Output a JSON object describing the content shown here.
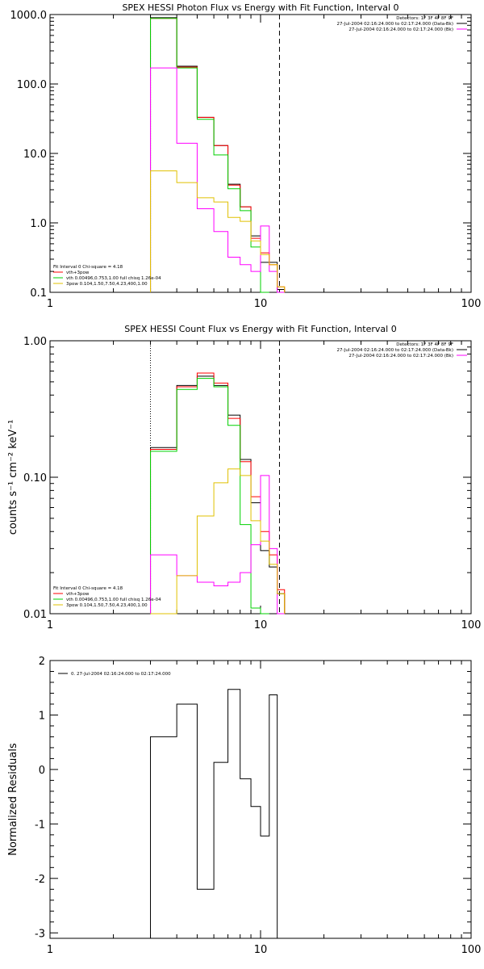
{
  "chart_data": [
    {
      "type": "line",
      "title": "SPEX HESSI Photon Flux vs Energy with Fit Function, Interval 0",
      "xlim": [
        1,
        100
      ],
      "ylim": [
        0.1,
        1000
      ],
      "xscale": "log",
      "yscale": "log",
      "xticks": [
        "1",
        "10",
        "100"
      ],
      "yticks": [
        "1000.0",
        "100.0",
        "10.0",
        "1.0",
        "0.1"
      ],
      "legend_top": [
        "Detectors: 1F 3F 4F 8F 9F",
        "27-Jul-2004 02:16:24.000 to 02:17:24.000 (Data-Bk)",
        "27-Jul-2004 02:16:24.000 to 02:17:24.000 (Bk)"
      ],
      "legend_bottom": [
        "Fit Interval 0   Chi-square = 4.18",
        "vth+3pow",
        "vth 0.00496,0.753,1.00  full chisq 1.26e-04",
        "3pow 0.104,1.50,7.50,4.23,400,1.00"
      ],
      "vlines": [
        3,
        12.3
      ],
      "edges": [
        3,
        4,
        5,
        6,
        7,
        8,
        9,
        10,
        11,
        12,
        13
      ],
      "series": [
        {
          "color": "#000000",
          "values": [
            900,
            180,
            33,
            13,
            3.6,
            1.7,
            0.65,
            0.27,
            0.27,
            0.11
          ]
        },
        {
          "color": "#ff0000",
          "values": [
            880,
            175,
            33,
            13,
            3.5,
            1.7,
            0.6,
            0.37,
            0.25,
            0.12
          ]
        },
        {
          "color": "#00d000",
          "values": [
            880,
            170,
            31,
            9.5,
            3.1,
            1.5,
            0.45,
            0.05
          ]
        },
        {
          "color": "#ff00ff",
          "values": [
            170,
            14,
            1.6,
            0.75,
            0.32,
            0.25,
            0.2,
            0.9,
            0.2,
            0.05
          ]
        },
        {
          "color": "#e0c000",
          "values": [
            5.6,
            3.8,
            2.3,
            2.0,
            1.2,
            1.05,
            0.55,
            0.35,
            0.25,
            0.12
          ]
        }
      ]
    },
    {
      "type": "line",
      "title": "SPEX HESSI Count Flux vs Energy with Fit Function, Interval 0",
      "xlim": [
        1,
        100
      ],
      "ylim": [
        0.01,
        1
      ],
      "xscale": "log",
      "yscale": "log",
      "xticks": [
        "1",
        "10",
        "100"
      ],
      "yticks": [
        "1.00",
        "0.10",
        "0.01"
      ],
      "ylabel": "counts s⁻¹ cm⁻² keV⁻¹",
      "legend_top": [
        "Detectors: 1F 3F 4F 8F 9F",
        "27-Jul-2004 02:16:24.000 to 02:17:24.000 (Data-Bk)",
        "27-Jul-2004 02:16:24.000 to 02:17:24.000 (Bk)"
      ],
      "legend_bottom": [
        "Fit Interval 0   Chi-square = 4.18",
        "vth+3pow",
        "vth 0.00496,0.753,1.00  full chisq 1.26e-04",
        "3pow 0.104,1.50,7.50,4.23,400,1.00"
      ],
      "vlines": [
        3,
        12.3
      ],
      "edges": [
        3,
        4,
        5,
        6,
        7,
        8,
        9,
        10,
        11,
        12,
        13
      ],
      "series": [
        {
          "color": "#000000",
          "values": [
            0.165,
            0.47,
            0.55,
            0.47,
            0.285,
            0.135,
            0.065,
            0.029,
            0.022,
            0.014
          ]
        },
        {
          "color": "#ff0000",
          "values": [
            0.16,
            0.46,
            0.58,
            0.49,
            0.27,
            0.13,
            0.072,
            0.04,
            0.027,
            0.015
          ]
        },
        {
          "color": "#00d000",
          "values": [
            0.155,
            0.44,
            0.53,
            0.46,
            0.24,
            0.045,
            0.011,
            0.006
          ]
        },
        {
          "color": "#ff00ff",
          "values": [
            0.027,
            0.019,
            0.017,
            0.016,
            0.017,
            0.02,
            0.032,
            0.103,
            0.03,
            0.005
          ]
        },
        {
          "color": "#e0c000",
          "values": [
            0.004,
            0.019,
            0.052,
            0.091,
            0.115,
            0.103,
            0.048,
            0.034,
            0.023,
            0.014
          ]
        }
      ]
    },
    {
      "type": "line",
      "xlim": [
        1,
        100
      ],
      "ylim": [
        -3.1,
        2
      ],
      "xscale": "log",
      "xticks": [
        "1",
        "10",
        "100"
      ],
      "yticks": [
        "2",
        "1",
        "0",
        "-1",
        "-2",
        "-3"
      ],
      "ylabel": "Normalized Residuals",
      "legend": [
        "0. 27-Jul-2004 02:16:24.000 to 02:17:24.000"
      ],
      "edges": [
        3,
        4,
        5,
        6,
        7,
        8,
        9,
        10,
        11,
        12
      ],
      "series": [
        {
          "color": "#000000",
          "values": [
            0.6,
            1.2,
            -2.2,
            0.13,
            1.47,
            -0.17,
            -0.68,
            -1.22,
            1.37
          ]
        }
      ]
    }
  ]
}
